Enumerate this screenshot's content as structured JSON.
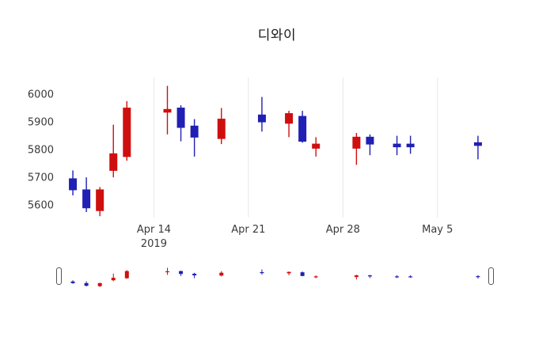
{
  "title": "디와이",
  "colors": {
    "increasing": "#cf0f0f",
    "decreasing": "#2020b4",
    "grid": "#e8e8e8",
    "tick_text": "#3a3a3a",
    "title_text": "#1a1a1a",
    "background": "#ffffff"
  },
  "chart_data": {
    "type": "candlestick",
    "title": "디와이",
    "xlabel": "",
    "ylabel": "",
    "grid": "vertical-only",
    "legend": "none",
    "rangeslider": true,
    "ylim": [
      5555,
      6060
    ],
    "xlim": [
      "2019-04-07",
      "2019-05-09"
    ],
    "y_ticks": [
      5600,
      5700,
      5800,
      5900,
      6000
    ],
    "x_ticks": [
      {
        "date": "2019-04-14",
        "label": "Apr 14",
        "sublabel": "2019"
      },
      {
        "date": "2019-04-21",
        "label": "Apr 21",
        "sublabel": ""
      },
      {
        "date": "2019-04-28",
        "label": "Apr 28",
        "sublabel": ""
      },
      {
        "date": "2019-05-05",
        "label": "May 5",
        "sublabel": ""
      }
    ],
    "candles": [
      {
        "date": "2019-04-08",
        "open": 5695,
        "high": 5725,
        "low": 5635,
        "close": 5655
      },
      {
        "date": "2019-04-09",
        "open": 5655,
        "high": 5700,
        "low": 5575,
        "close": 5590
      },
      {
        "date": "2019-04-10",
        "open": 5580,
        "high": 5665,
        "low": 5560,
        "close": 5655
      },
      {
        "date": "2019-04-11",
        "open": 5725,
        "high": 5890,
        "low": 5700,
        "close": 5785
      },
      {
        "date": "2019-04-12",
        "open": 5775,
        "high": 5975,
        "low": 5760,
        "close": 5950
      },
      {
        "date": "2019-04-15",
        "open": 5935,
        "high": 6030,
        "low": 5855,
        "close": 5945
      },
      {
        "date": "2019-04-16",
        "open": 5950,
        "high": 5960,
        "low": 5830,
        "close": 5880
      },
      {
        "date": "2019-04-17",
        "open": 5885,
        "high": 5910,
        "low": 5775,
        "close": 5845
      },
      {
        "date": "2019-04-19",
        "open": 5840,
        "high": 5950,
        "low": 5820,
        "close": 5910
      },
      {
        "date": "2019-04-22",
        "open": 5925,
        "high": 5990,
        "low": 5865,
        "close": 5900
      },
      {
        "date": "2019-04-24",
        "open": 5895,
        "high": 5940,
        "low": 5845,
        "close": 5930
      },
      {
        "date": "2019-04-25",
        "open": 5920,
        "high": 5940,
        "low": 5825,
        "close": 5830
      },
      {
        "date": "2019-04-26",
        "open": 5805,
        "high": 5845,
        "low": 5775,
        "close": 5820
      },
      {
        "date": "2019-04-29",
        "open": 5805,
        "high": 5860,
        "low": 5745,
        "close": 5845
      },
      {
        "date": "2019-04-30",
        "open": 5845,
        "high": 5855,
        "low": 5780,
        "close": 5820
      },
      {
        "date": "2019-05-02",
        "open": 5820,
        "high": 5850,
        "low": 5780,
        "close": 5810
      },
      {
        "date": "2019-05-03",
        "open": 5820,
        "high": 5850,
        "low": 5785,
        "close": 5810
      },
      {
        "date": "2019-05-08",
        "open": 5825,
        "high": 5850,
        "low": 5765,
        "close": 5815
      }
    ]
  }
}
